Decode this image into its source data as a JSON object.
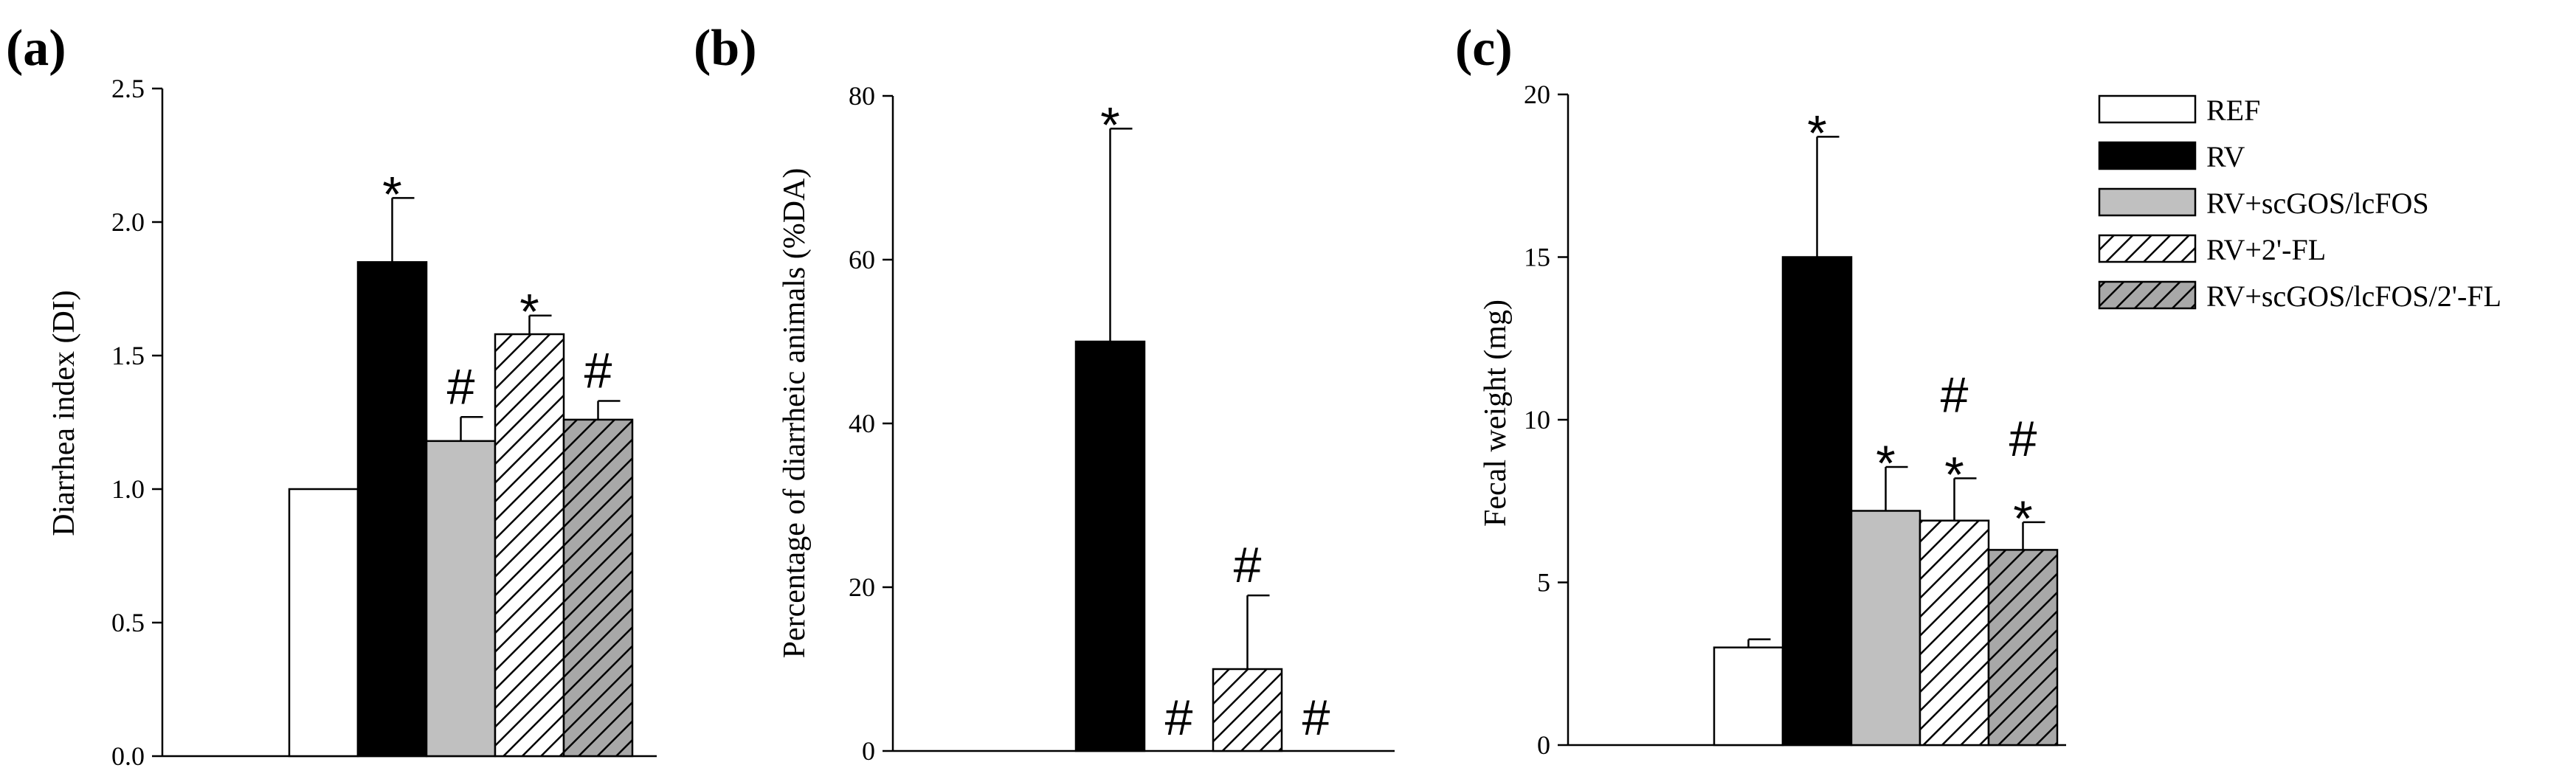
{
  "groups": [
    {
      "name": "REF",
      "fill": "#ffffff",
      "pattern": "none"
    },
    {
      "name": "RV",
      "fill": "#000000",
      "pattern": "none"
    },
    {
      "name": "RV+scGOS/lcFOS",
      "fill": "#c0c0c0",
      "pattern": "none"
    },
    {
      "name": "RV+2'-FL",
      "fill": "#ffffff",
      "pattern": "hatch"
    },
    {
      "name": "RV+scGOS/lcFOS/2'-FL",
      "fill": "#a8a8a8",
      "pattern": "hatch"
    }
  ],
  "chart_data": [
    {
      "type": "bar",
      "panel_label": "(a)",
      "ylabel": "Diarrhea index (DI)",
      "ylim": [
        0,
        2.5
      ],
      "yticks": [
        "0.0",
        "0.5",
        "1.0",
        "1.5",
        "2.0",
        "2.5"
      ],
      "values": [
        1.0,
        1.85,
        1.18,
        1.58,
        1.26
      ],
      "errors": [
        0,
        0.24,
        0.09,
        0.07,
        0.07
      ],
      "annotations": [
        [],
        [
          "*"
        ],
        [
          "#"
        ],
        [
          "*"
        ],
        [
          "#"
        ]
      ]
    },
    {
      "type": "bar",
      "panel_label": "(b)",
      "ylabel": "Percentage of diarrheic animals (%DA)",
      "ylim": [
        0,
        80
      ],
      "yticks": [
        "0",
        "20",
        "40",
        "60",
        "80"
      ],
      "values": [
        0,
        50,
        0,
        10,
        0
      ],
      "errors": [
        0,
        26,
        0,
        9,
        0
      ],
      "annotations": [
        [],
        [
          "*"
        ],
        [
          "#"
        ],
        [
          "#"
        ],
        [
          "#"
        ]
      ]
    },
    {
      "type": "bar",
      "panel_label": "(c)",
      "ylabel": "Fecal weight (mg)",
      "ylim": [
        0,
        20
      ],
      "yticks": [
        "0",
        "5",
        "10",
        "15",
        "20"
      ],
      "values": [
        3.0,
        15.0,
        7.2,
        6.9,
        6.0
      ],
      "errors": [
        0.25,
        3.7,
        1.35,
        1.3,
        0.85
      ],
      "annotations": [
        [],
        [
          "*"
        ],
        [
          "*"
        ],
        [
          "*",
          "#"
        ],
        [
          "*",
          "#"
        ]
      ]
    }
  ]
}
